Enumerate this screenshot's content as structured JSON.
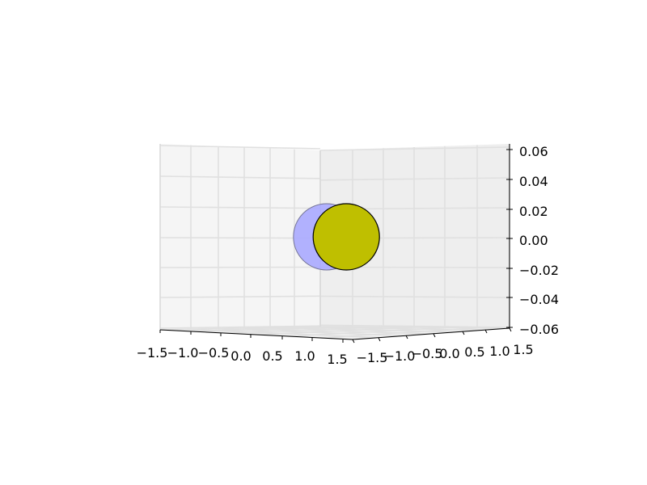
{
  "chart_data": {
    "type": "scatter",
    "projection": "3d",
    "title": "",
    "grid": true,
    "x_axis": {
      "label": "",
      "range": [
        -1.5,
        1.5
      ],
      "tick_labels": [
        "−1.5",
        "−1.0",
        "−0.5",
        "0.0",
        "0.5",
        "1.0",
        "1.5"
      ]
    },
    "y_axis": {
      "label": "",
      "range": [
        -1.5,
        1.5
      ],
      "tick_labels": [
        "−1.5",
        "−1.0",
        "−0.5",
        "0.0",
        "0.5",
        "1.0",
        "1.5"
      ]
    },
    "z_axis": {
      "label": "",
      "range": [
        -0.06,
        0.06
      ],
      "tick_labels": [
        "0.06",
        "0.04",
        "0.02",
        "0.00",
        "−0.02",
        "−0.04",
        "−0.06"
      ]
    },
    "series": [
      {
        "x": -0.2,
        "y": 0.0,
        "z": 0.0,
        "color": "#aaaaff",
        "edge": "#777799",
        "opacity": 0.9
      },
      {
        "x": 0.2,
        "y": 0.0,
        "z": 0.0,
        "color": "#bfbf00",
        "edge": "#000000",
        "opacity": 1.0
      }
    ]
  }
}
